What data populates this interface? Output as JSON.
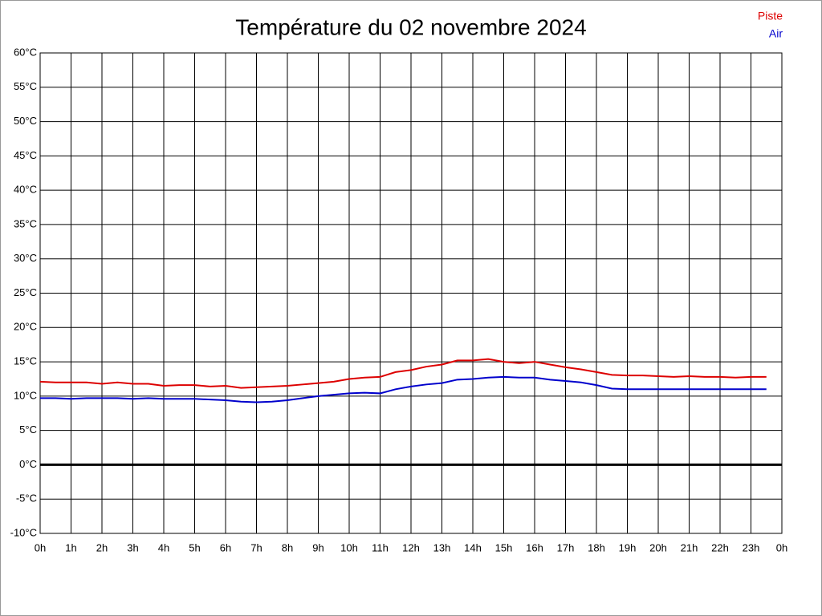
{
  "chart_data": {
    "type": "line",
    "title": "Température du 02 novembre 2024",
    "x": [
      0,
      0.5,
      1,
      1.5,
      2,
      2.5,
      3,
      3.5,
      4,
      4.5,
      5,
      5.5,
      6,
      6.5,
      7,
      7.5,
      8,
      8.5,
      9,
      9.5,
      10,
      10.5,
      11,
      11.5,
      12,
      12.5,
      13,
      13.5,
      14,
      14.5,
      15,
      15.5,
      16,
      16.5,
      17,
      17.5,
      18,
      18.5,
      19,
      19.5,
      20,
      20.5,
      21,
      21.5,
      22,
      22.5,
      23,
      23.5
    ],
    "series": [
      {
        "name": "Piste",
        "color": "#dd0000",
        "values": [
          12.1,
          12.0,
          12.0,
          12.0,
          11.8,
          12.0,
          11.8,
          11.8,
          11.5,
          11.6,
          11.6,
          11.4,
          11.5,
          11.2,
          11.3,
          11.4,
          11.5,
          11.7,
          11.9,
          12.1,
          12.5,
          12.7,
          12.8,
          13.5,
          13.8,
          14.3,
          14.6,
          15.2,
          15.2,
          15.4,
          15.0,
          14.8,
          15.0,
          14.6,
          14.2,
          13.9,
          13.5,
          13.1,
          13.0,
          13.0,
          12.9,
          12.8,
          12.9,
          12.8,
          12.8,
          12.7,
          12.8,
          12.8
        ]
      },
      {
        "name": "Air",
        "color": "#0000cc",
        "values": [
          9.7,
          9.7,
          9.6,
          9.7,
          9.7,
          9.7,
          9.6,
          9.7,
          9.6,
          9.6,
          9.6,
          9.5,
          9.4,
          9.2,
          9.1,
          9.2,
          9.4,
          9.7,
          10.0,
          10.2,
          10.4,
          10.5,
          10.4,
          11.0,
          11.4,
          11.7,
          11.9,
          12.4,
          12.5,
          12.7,
          12.8,
          12.7,
          12.7,
          12.4,
          12.2,
          12.0,
          11.6,
          11.1,
          11.0,
          11.0,
          11.0,
          11.0,
          11.0,
          11.0,
          11.0,
          11.0,
          11.0,
          11.0
        ]
      }
    ],
    "xlim": [
      0,
      24
    ],
    "xticks": [
      {
        "value": 0,
        "label": "0h"
      },
      {
        "value": 1,
        "label": "1h"
      },
      {
        "value": 2,
        "label": "2h"
      },
      {
        "value": 3,
        "label": "3h"
      },
      {
        "value": 4,
        "label": "4h"
      },
      {
        "value": 5,
        "label": "5h"
      },
      {
        "value": 6,
        "label": "6h"
      },
      {
        "value": 7,
        "label": "7h"
      },
      {
        "value": 8,
        "label": "8h"
      },
      {
        "value": 9,
        "label": "9h"
      },
      {
        "value": 10,
        "label": "10h"
      },
      {
        "value": 11,
        "label": "11h"
      },
      {
        "value": 12,
        "label": "12h"
      },
      {
        "value": 13,
        "label": "13h"
      },
      {
        "value": 14,
        "label": "14h"
      },
      {
        "value": 15,
        "label": "15h"
      },
      {
        "value": 16,
        "label": "16h"
      },
      {
        "value": 17,
        "label": "17h"
      },
      {
        "value": 18,
        "label": "18h"
      },
      {
        "value": 19,
        "label": "19h"
      },
      {
        "value": 20,
        "label": "20h"
      },
      {
        "value": 21,
        "label": "21h"
      },
      {
        "value": 22,
        "label": "22h"
      },
      {
        "value": 23,
        "label": "23h"
      },
      {
        "value": 24,
        "label": "0h"
      }
    ],
    "ylim": [
      -10,
      60
    ],
    "yticks": [
      {
        "value": -10,
        "label": "-10°C"
      },
      {
        "value": -5,
        "label": "-5°C"
      },
      {
        "value": 0,
        "label": "0°C"
      },
      {
        "value": 5,
        "label": "5°C"
      },
      {
        "value": 10,
        "label": "10°C"
      },
      {
        "value": 15,
        "label": "15°C"
      },
      {
        "value": 20,
        "label": "20°C"
      },
      {
        "value": 25,
        "label": "25°C"
      },
      {
        "value": 30,
        "label": "30°C"
      },
      {
        "value": 35,
        "label": "35°C"
      },
      {
        "value": 40,
        "label": "40°C"
      },
      {
        "value": 45,
        "label": "45°C"
      },
      {
        "value": 50,
        "label": "50°C"
      },
      {
        "value": 55,
        "label": "55°C"
      },
      {
        "value": 60,
        "label": "60°C"
      }
    ],
    "grid": true,
    "legend": "top-right"
  }
}
